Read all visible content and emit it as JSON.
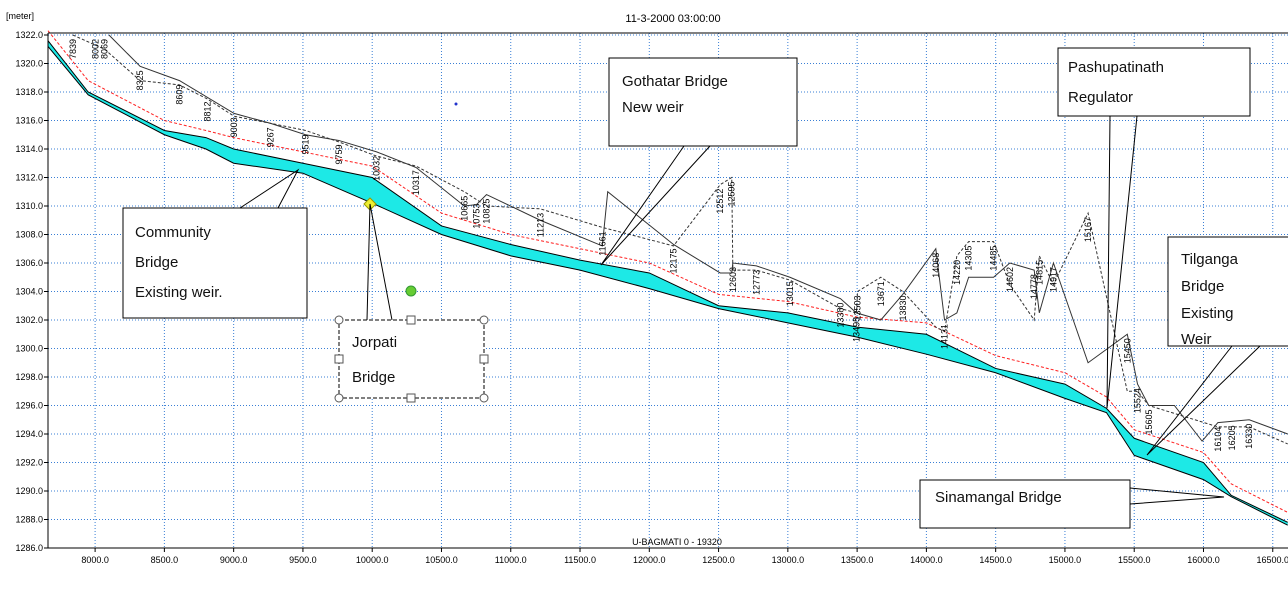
{
  "chart_data": {
    "type": "line",
    "y_unit": "[meter]",
    "subtitle": "11-3-2000 03:00:00",
    "branch_label": "U-BAGMATI 0 - 19320",
    "xlim": [
      7660,
      16610
    ],
    "ylim": [
      1286,
      1322
    ],
    "grid": true,
    "xticks": [
      {
        "value": 8000,
        "label": "8000.0"
      },
      {
        "value": 8500,
        "label": "8500.0"
      },
      {
        "value": 9000,
        "label": "9000.0"
      },
      {
        "value": 9500,
        "label": "9500.0"
      },
      {
        "value": 10000,
        "label": "10000.0"
      },
      {
        "value": 10500,
        "label": "10500.0"
      },
      {
        "value": 11000,
        "label": "11000.0"
      },
      {
        "value": 11500,
        "label": "11500.0"
      },
      {
        "value": 12000,
        "label": "12000.0"
      },
      {
        "value": 12500,
        "label": "12500.0"
      },
      {
        "value": 13000,
        "label": "13000.0"
      },
      {
        "value": 13500,
        "label": "13500.0"
      },
      {
        "value": 14000,
        "label": "14000.0"
      },
      {
        "value": 14500,
        "label": "14500.0"
      },
      {
        "value": 15000,
        "label": "15000.0"
      },
      {
        "value": 15500,
        "label": "15500.0"
      },
      {
        "value": 16000,
        "label": "16000.0"
      },
      {
        "value": 16500,
        "label": "16500.0"
      }
    ],
    "yticks": [
      {
        "value": 1286,
        "label": "1286.0"
      },
      {
        "value": 1288,
        "label": "1288.0"
      },
      {
        "value": 1290,
        "label": "1290.0"
      },
      {
        "value": 1292,
        "label": "1292.0"
      },
      {
        "value": 1294,
        "label": "1294.0"
      },
      {
        "value": 1296,
        "label": "1296.0"
      },
      {
        "value": 1298,
        "label": "1298.0"
      },
      {
        "value": 1300,
        "label": "1300.0"
      },
      {
        "value": 1302,
        "label": "1302.0"
      },
      {
        "value": 1304,
        "label": "1304.0"
      },
      {
        "value": 1306,
        "label": "1306.0"
      },
      {
        "value": 1308,
        "label": "1308.0"
      },
      {
        "value": 1310,
        "label": "1310.0"
      },
      {
        "value": 1312,
        "label": "1312.0"
      },
      {
        "value": 1314,
        "label": "1314.0"
      },
      {
        "value": 1316,
        "label": "1316.0"
      },
      {
        "value": 1318,
        "label": "1318.0"
      },
      {
        "value": 1320,
        "label": "1320.0"
      },
      {
        "value": 1322,
        "label": "1322.0"
      }
    ],
    "profile_x": [
      7660,
      7950,
      8500,
      8800,
      9000,
      9500,
      10000,
      10500,
      11000,
      11500,
      12000,
      12500,
      13000,
      13500,
      14000,
      14500,
      15000,
      15300,
      15500,
      16000,
      16200,
      16608
    ],
    "fill_color": "#1de9e6",
    "series": [
      {
        "color": "#000000",
        "style": "solid",
        "x": [
          7660,
          7950,
          8500,
          8800,
          9000,
          9500,
          10000,
          10500,
          11000,
          11500,
          12000,
          12500,
          13000,
          13500,
          14000,
          14500,
          15000,
          15300,
          15500,
          16000,
          16200,
          16608
        ],
        "values": [
          1321.2,
          1317.8,
          1315.0,
          1314.0,
          1313.0,
          1312.3,
          1310.2,
          1308.0,
          1306.5,
          1305.5,
          1304.2,
          1302.8,
          1301.8,
          1300.8,
          1299.6,
          1298.3,
          1296.5,
          1295.5,
          1292.5,
          1290.8,
          1289.6,
          1287.6
        ]
      },
      {
        "color": "#000000",
        "style": "solid",
        "x": [
          7660,
          7950,
          8500,
          8800,
          9000,
          9500,
          10000,
          10500,
          11000,
          11500,
          12000,
          12500,
          13000,
          13500,
          14000,
          14500,
          15000,
          15300,
          15500,
          16000,
          16200,
          16608
        ],
        "values": [
          1321.6,
          1318.0,
          1315.3,
          1314.8,
          1314.0,
          1313.0,
          1312.0,
          1308.6,
          1307.3,
          1306.2,
          1305.3,
          1303.0,
          1302.5,
          1301.5,
          1301.0,
          1298.6,
          1297.5,
          1295.8,
          1293.7,
          1292.0,
          1289.7,
          1287.8
        ]
      },
      {
        "color": "#ff2020",
        "style": "dashed",
        "x": [
          7660,
          7950,
          8500,
          8800,
          9000,
          9500,
          10000,
          10500,
          11000,
          11500,
          12000,
          12500,
          13000,
          13500,
          14000,
          14500,
          15000,
          15300,
          15500,
          16000,
          16200,
          16608
        ],
        "values": [
          1322.3,
          1318.8,
          1316.0,
          1315.3,
          1314.8,
          1313.8,
          1312.8,
          1309.5,
          1308.0,
          1307.0,
          1306.0,
          1303.8,
          1303.3,
          1302.2,
          1301.8,
          1299.5,
          1298.3,
          1296.6,
          1294.3,
          1292.7,
          1290.5,
          1288.5
        ]
      },
      {
        "color": "#333333",
        "style": "solid",
        "x": [
          8100,
          8325,
          8609,
          9003,
          9267,
          9519,
          9759,
          10032,
          10317,
          10665,
          10753,
          10825,
          11213,
          11661,
          11700,
          12175,
          12512,
          12595,
          12603,
          12773,
          13015,
          13380,
          13495,
          13671,
          13830,
          14068,
          14131,
          14220,
          14305,
          14485,
          14602,
          14778,
          14815,
          14917,
          15167,
          15450,
          15524,
          15605,
          15790,
          15990,
          16104,
          16330,
          16608
        ],
        "values": [
          1322.0,
          1319.8,
          1318.8,
          1316.5,
          1315.8,
          1315.0,
          1314.6,
          1313.8,
          1312.7,
          1310.0,
          1310.1,
          1310.8,
          1309.0,
          1307.2,
          1311.0,
          1307.3,
          1305.3,
          1305.3,
          1306.0,
          1305.8,
          1305.0,
          1303.5,
          1302.5,
          1302.0,
          1303.8,
          1307.0,
          1302.0,
          1302.5,
          1305.0,
          1305.0,
          1306.0,
          1305.5,
          1302.5,
          1306.0,
          1299.0,
          1301.0,
          1297.5,
          1296.0,
          1296.0,
          1293.5,
          1294.8,
          1295.0,
          1294.0
        ]
      },
      {
        "color": "#333333",
        "style": "dashed",
        "x": [
          7839,
          8069,
          8325,
          8609,
          8812,
          9003,
          9267,
          9519,
          9759,
          10032,
          10317,
          10665,
          10825,
          11213,
          11661,
          12175,
          12512,
          12595,
          12603,
          12773,
          13015,
          13380,
          13495,
          13503,
          13671,
          13830,
          14068,
          14131,
          14220,
          14305,
          14485,
          14602,
          14778,
          14815,
          14917,
          15167,
          15450,
          15524,
          15605,
          16104,
          16330,
          16608
        ],
        "values": [
          1322.0,
          1321.0,
          1318.8,
          1318.5,
          1317.5,
          1316.3,
          1315.8,
          1315.3,
          1314.5,
          1313.5,
          1312.8,
          1311.0,
          1310.0,
          1309.8,
          1308.5,
          1307.2,
          1311.5,
          1312.0,
          1305.5,
          1305.5,
          1304.8,
          1302.8,
          1302.5,
          1304.0,
          1305.0,
          1304.0,
          1301.5,
          1301.2,
          1306.5,
          1307.5,
          1307.5,
          1304.5,
          1302.0,
          1306.5,
          1304.5,
          1309.5,
          1297.0,
          1297.0,
          1296.0,
          1294.5,
          1294.5,
          1293.3
        ]
      }
    ],
    "chainages": [
      7839,
      8002,
      8069,
      8325,
      8609,
      8812,
      9003,
      9267,
      9519,
      9759,
      10032,
      10317,
      10665,
      10753,
      10825,
      11213,
      11661,
      12175,
      12512,
      12595,
      12603,
      12773,
      13015,
      13380,
      13495,
      13503,
      13671,
      13830,
      14068,
      14131,
      14220,
      14305,
      14485,
      14602,
      14778,
      14815,
      14917,
      15167,
      15450,
      15524,
      15605,
      16104,
      16205,
      16330
    ],
    "annotations": [
      {
        "lines": [
          "Community",
          "Bridge",
          "Existing weir."
        ]
      },
      {
        "lines": [
          "Jorpati",
          "Bridge"
        ]
      },
      {
        "lines": [
          "Gothatar Bridge",
          "New weir"
        ]
      },
      {
        "lines": [
          "Pashupatinath",
          "Regulator"
        ]
      },
      {
        "lines": [
          "Tilganga",
          "Bridge",
          "Existing",
          "Weir"
        ]
      },
      {
        "lines": [
          "Sinamangal Bridge"
        ]
      }
    ]
  }
}
